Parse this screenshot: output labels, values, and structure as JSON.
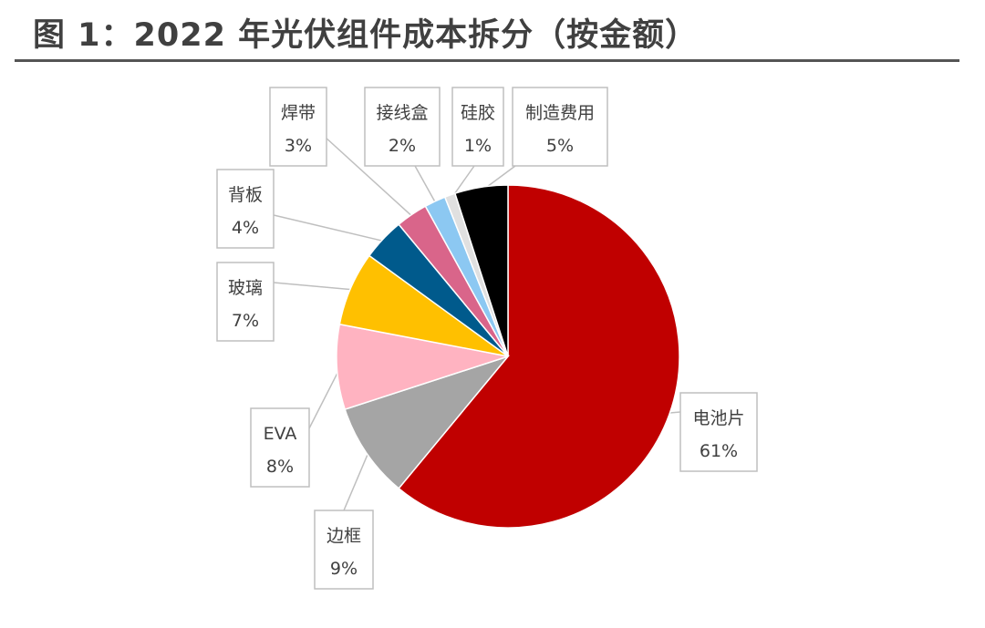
{
  "figure": {
    "title": "图 1：2022 年光伏组件成本拆分（按金额）"
  },
  "chart_data": {
    "type": "pie",
    "title": "图 1：2022 年光伏组件成本拆分（按金额）",
    "unit": "%",
    "start_angle_deg": 0,
    "direction": "clockwise",
    "slices": [
      {
        "label": "电池片",
        "value": 61,
        "value_label": "61%",
        "color": "#C00000"
      },
      {
        "label": "边框",
        "value": 9,
        "value_label": "9%",
        "color": "#A5A5A5"
      },
      {
        "label": "EVA",
        "value": 8,
        "value_label": "8%",
        "color": "#FFB3C1"
      },
      {
        "label": "玻璃",
        "value": 7,
        "value_label": "7%",
        "color": "#FFC000"
      },
      {
        "label": "背板",
        "value": 4,
        "value_label": "4%",
        "color": "#005A8C"
      },
      {
        "label": "焊带",
        "value": 3,
        "value_label": "3%",
        "color": "#D9658A"
      },
      {
        "label": "接线盒",
        "value": 2,
        "value_label": "2%",
        "color": "#8CC8F2"
      },
      {
        "label": "硅胶",
        "value": 1,
        "value_label": "1%",
        "color": "#E0E0E0"
      },
      {
        "label": "制造费用",
        "value": 5,
        "value_label": "5%",
        "color": "#000000"
      }
    ],
    "legend": "none",
    "data_labels": "callout"
  }
}
